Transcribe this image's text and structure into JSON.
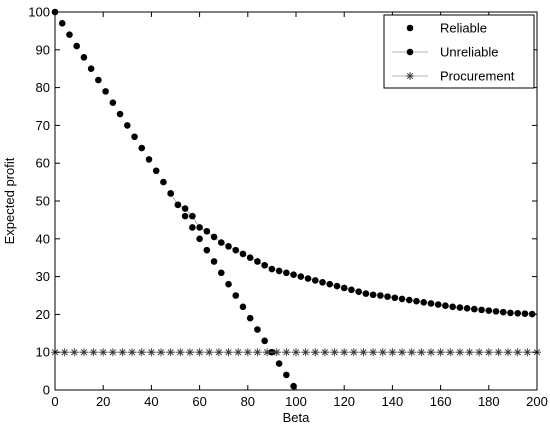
{
  "chart_data": {
    "type": "scatter",
    "title": "",
    "xlabel": "Beta",
    "ylabel": "Expected profit",
    "xlim": [
      0,
      200
    ],
    "ylim": [
      0,
      100
    ],
    "xticks": [
      "0",
      "20",
      "40",
      "60",
      "80",
      "100",
      "120",
      "140",
      "160",
      "180",
      "200"
    ],
    "yticks": [
      "0",
      "10",
      "20",
      "30",
      "40",
      "50",
      "60",
      "70",
      "80",
      "90",
      "100"
    ],
    "grid": false,
    "legend_position": "top-right",
    "series": [
      {
        "name": "Reliable",
        "marker": "dot",
        "line": false,
        "x": [
          0,
          3,
          6,
          9,
          12,
          15,
          18,
          21,
          24,
          27,
          30,
          33,
          36,
          39,
          42,
          45,
          48,
          51,
          54,
          57,
          60,
          63,
          66,
          69,
          72,
          75,
          78,
          81,
          84,
          87,
          90,
          93,
          96,
          99
        ],
        "y": [
          100,
          97,
          94,
          91,
          88,
          85,
          82,
          79,
          76,
          73,
          70,
          67,
          64,
          61,
          58,
          55,
          52,
          49,
          46,
          43,
          40,
          37,
          34,
          31,
          28,
          25,
          22,
          19,
          16,
          13,
          10,
          7,
          4,
          1
        ]
      },
      {
        "name": "Unreliable",
        "marker": "dot",
        "line": true,
        "line_color": "#9a9a9a",
        "x": [
          48,
          51,
          54,
          57,
          60,
          63,
          66,
          69,
          72,
          75,
          78,
          81,
          84,
          87,
          90,
          93,
          96,
          99,
          102,
          105,
          108,
          111,
          114,
          117,
          120,
          123,
          126,
          129,
          132,
          135,
          138,
          141,
          144,
          147,
          150,
          153,
          156,
          159,
          162,
          165,
          168,
          171,
          174,
          177,
          180,
          183,
          186,
          189,
          192,
          195,
          198
        ],
        "y": [
          52,
          49,
          48,
          46,
          43,
          42,
          40.5,
          39,
          38,
          37,
          36,
          35,
          34,
          33,
          32,
          31.5,
          31,
          30.5,
          30,
          29.5,
          29,
          28.5,
          28,
          27.5,
          27,
          26.5,
          26,
          25.5,
          25.2,
          25,
          24.7,
          24.4,
          24.1,
          23.8,
          23.5,
          23.2,
          22.9,
          22.6,
          22.3,
          22,
          21.8,
          21.6,
          21.4,
          21.2,
          21,
          20.8,
          20.6,
          20.4,
          20.3,
          20.2,
          20.1
        ]
      },
      {
        "name": "Procurement",
        "marker": "asterisk",
        "line": true,
        "line_color": "#9a9a9a",
        "x": [
          0,
          4,
          8,
          12,
          16,
          20,
          24,
          28,
          32,
          36,
          40,
          44,
          48,
          52,
          56,
          60,
          64,
          68,
          72,
          76,
          80,
          84,
          88,
          92,
          96,
          100,
          104,
          108,
          112,
          116,
          120,
          124,
          128,
          132,
          136,
          140,
          144,
          148,
          152,
          156,
          160,
          164,
          168,
          172,
          176,
          180,
          184,
          188,
          192,
          196,
          200
        ],
        "y": [
          10,
          10,
          10,
          10,
          10,
          10,
          10,
          10,
          10,
          10,
          10,
          10,
          10,
          10,
          10,
          10,
          10,
          10,
          10,
          10,
          10,
          10,
          10,
          10,
          10,
          10,
          10,
          10,
          10,
          10,
          10,
          10,
          10,
          10,
          10,
          10,
          10,
          10,
          10,
          10,
          10,
          10,
          10,
          10,
          10,
          10,
          10,
          10,
          10,
          10,
          10
        ]
      }
    ],
    "colors": {
      "marker": "#000000",
      "axis": "#000000",
      "line": "#9a9a9a"
    }
  }
}
